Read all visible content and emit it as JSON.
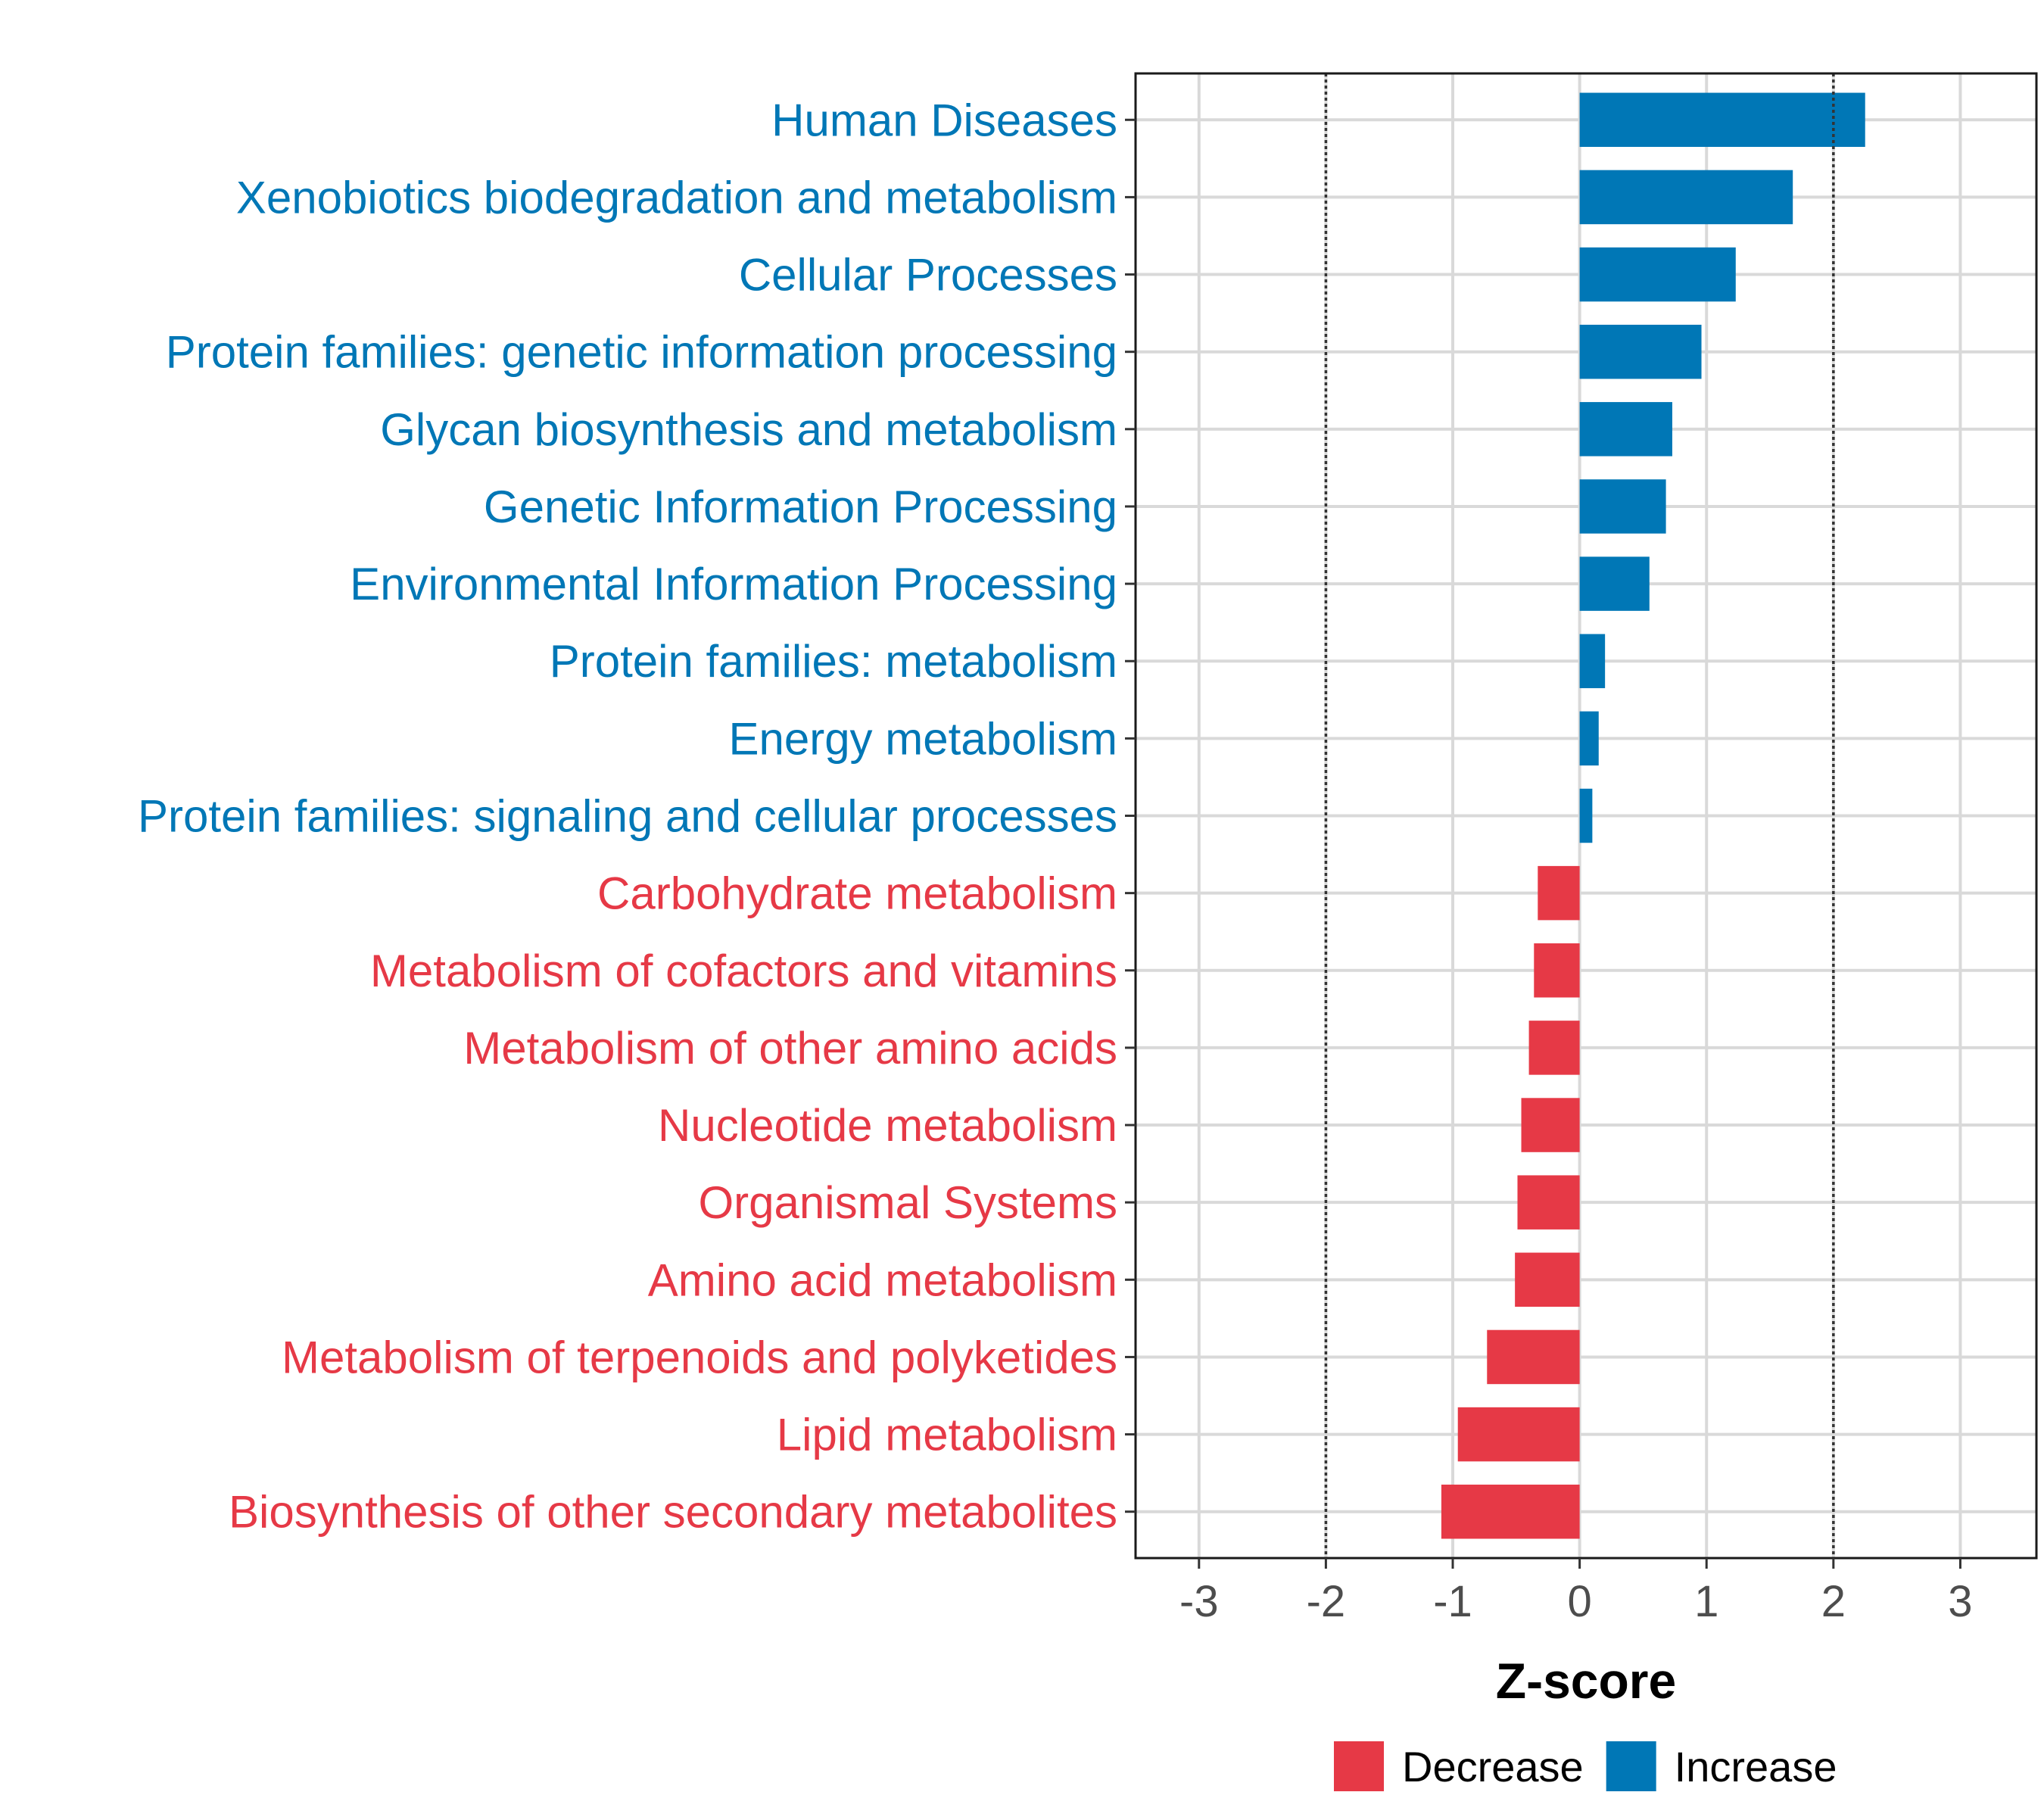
{
  "chart_data": {
    "type": "bar",
    "orientation": "horizontal",
    "xlabel": "Z-score",
    "xlim": [
      -3.5,
      3.6
    ],
    "xticks": [
      -3,
      -2,
      -1,
      0,
      1,
      2,
      3
    ],
    "xtick_labels": [
      "-3",
      "-2",
      "-1",
      "0",
      "1",
      "2",
      "3"
    ],
    "reference_lines": [
      -2,
      2
    ],
    "grid": true,
    "colors": {
      "Increase": "#0077b6",
      "Decrease": "#e63946"
    },
    "categories": [
      "Human Diseases",
      "Xenobiotics biodegradation and metabolism",
      "Cellular Processes",
      "Protein families: genetic information processing",
      "Glycan biosynthesis and metabolism",
      "Genetic Information Processing",
      "Environmental Information Processing",
      "Protein families: metabolism",
      "Energy metabolism",
      "Protein families: signaling and cellular processes",
      "Carbohydrate metabolism",
      "Metabolism of cofactors and vitamins",
      "Metabolism of other amino acids",
      "Nucleotide metabolism",
      "Organismal Systems",
      "Amino acid metabolism",
      "Metabolism of terpenoids and polyketides",
      "Lipid metabolism",
      "Biosynthesis of other secondary metabolites"
    ],
    "values": [
      2.25,
      1.68,
      1.23,
      0.96,
      0.73,
      0.68,
      0.55,
      0.2,
      0.15,
      0.1,
      -0.33,
      -0.36,
      -0.4,
      -0.46,
      -0.49,
      -0.51,
      -0.73,
      -0.96,
      -1.09
    ],
    "groups": [
      "Increase",
      "Increase",
      "Increase",
      "Increase",
      "Increase",
      "Increase",
      "Increase",
      "Increase",
      "Increase",
      "Increase",
      "Decrease",
      "Decrease",
      "Decrease",
      "Decrease",
      "Decrease",
      "Decrease",
      "Decrease",
      "Decrease",
      "Decrease"
    ],
    "legend": {
      "position": "bottom",
      "items": [
        {
          "label": "Decrease",
          "color": "#e63946"
        },
        {
          "label": "Increase",
          "color": "#0077b6"
        }
      ]
    }
  }
}
